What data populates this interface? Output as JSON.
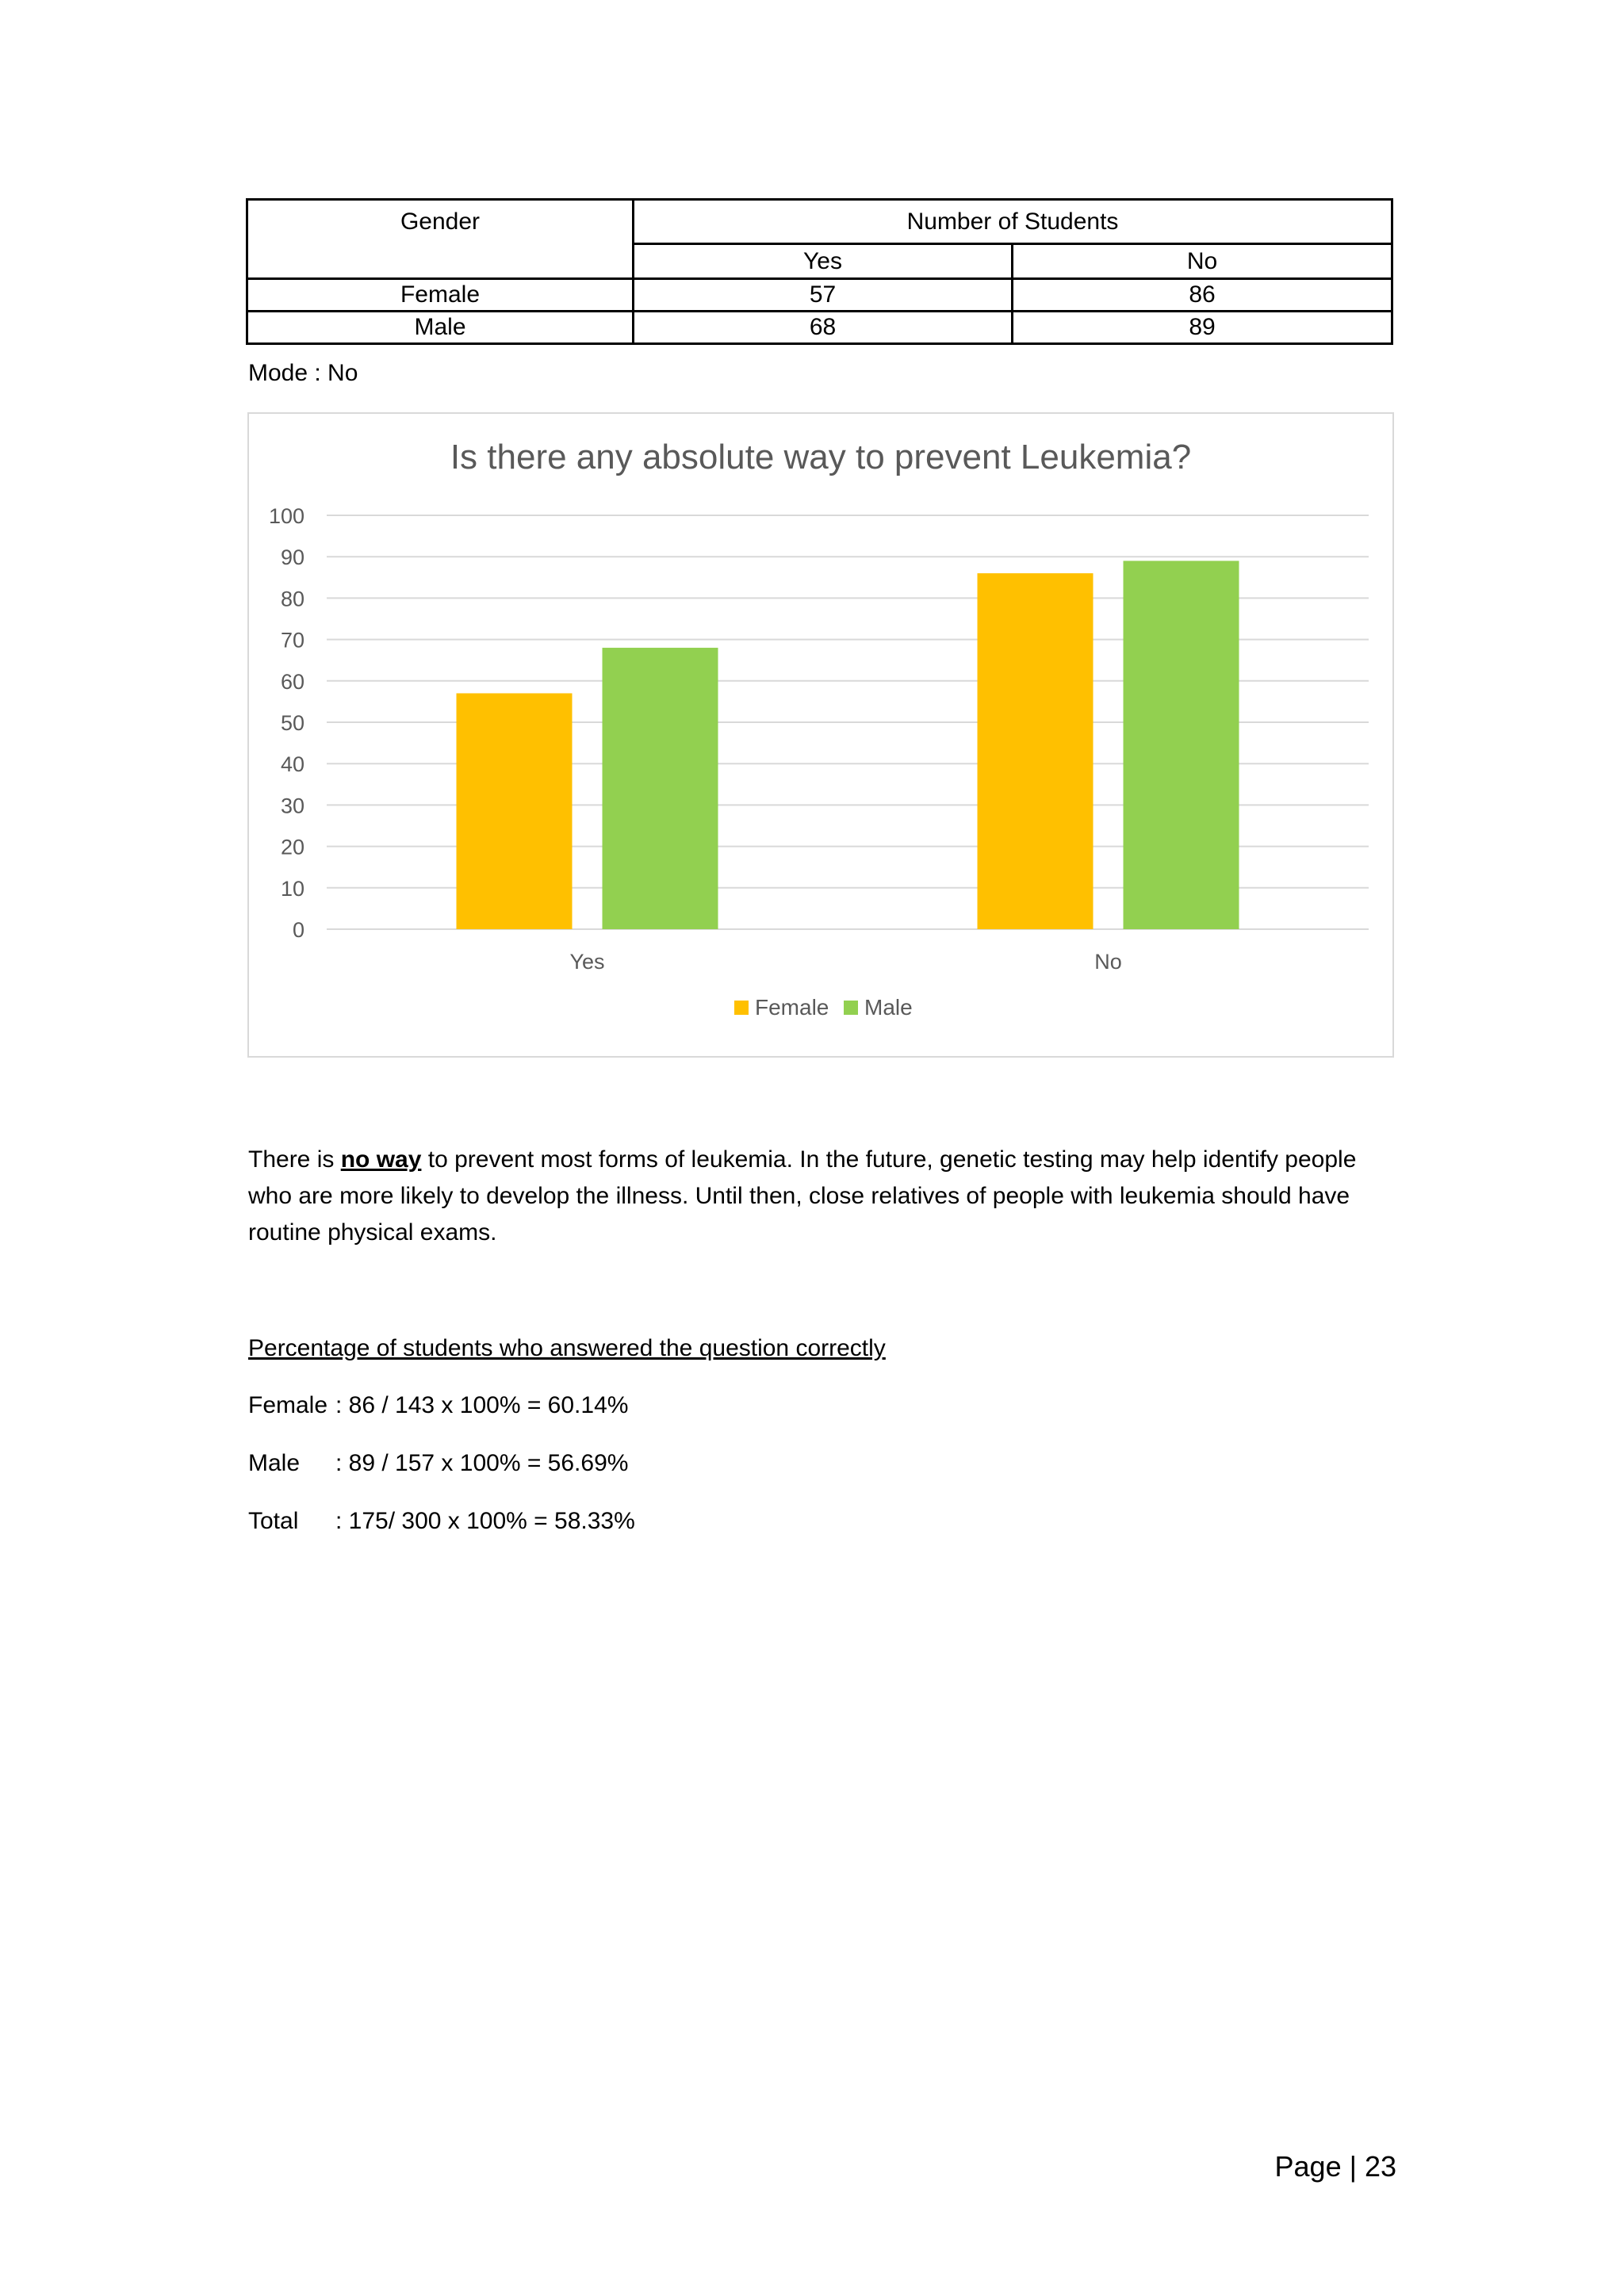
{
  "table": {
    "gender_header": "Gender",
    "students_header": "Number  of Students",
    "yes_header": "Yes",
    "no_header": "No",
    "rows": [
      {
        "gender": "Female",
        "yes": "57",
        "no": "86"
      },
      {
        "gender": "Male",
        "yes": "68",
        "no": "89"
      }
    ]
  },
  "mode_text": "Mode : No",
  "chart_data": {
    "type": "bar",
    "title": "Is there any absolute way to prevent Leukemia?",
    "categories": [
      "Yes",
      "No"
    ],
    "series": [
      {
        "name": "Female",
        "values": [
          57,
          86
        ],
        "color": "#FFC000"
      },
      {
        "name": "Male",
        "values": [
          68,
          89
        ],
        "color": "#92D050"
      }
    ],
    "ylim": [
      0,
      100
    ],
    "yticks": [
      0,
      10,
      20,
      30,
      40,
      50,
      60,
      70,
      80,
      90,
      100
    ],
    "grid": true,
    "legend": "bottom"
  },
  "paragraph": {
    "before": "There is ",
    "emphasis": "no way",
    "after": " to prevent  most forms of leukemia. In the future,  genetic testing may help identify people who are more likely to develop  the illness. Until then, close relatives of people with leukemia should have routine physical exams."
  },
  "percentage": {
    "title": "Percentage of students who answered the question correctly",
    "rows": [
      {
        "label": "Female",
        "calc": ": 86 / 143  x 100% =  60.14%"
      },
      {
        "label": "Male",
        "calc": ": 89 / 157  x 100% =  56.69%"
      },
      {
        "label": "Total",
        "calc": ": 175/ 300  x 100% = 58.33%"
      }
    ]
  },
  "page_number": "Page | 23"
}
